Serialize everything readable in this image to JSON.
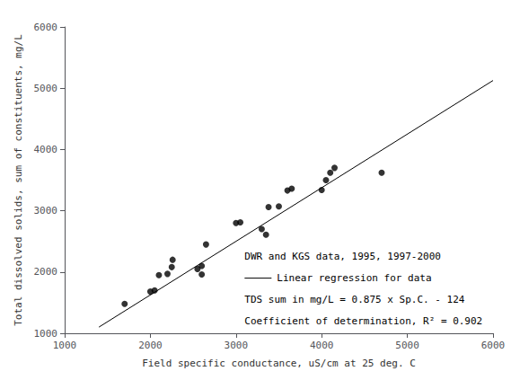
{
  "chart_data": {
    "type": "scatter",
    "xlabel": "Field specific conductance, uS/cm at 25 deg. C",
    "ylabel": "Total dissolved solids, sum of constituents, mg/L",
    "series": [
      {
        "name": "DWR and KGS data, 1995, 1997-2000",
        "type": "scatter",
        "color": "#000000",
        "marker": "circle",
        "x": [
          1700,
          2000,
          2050,
          2100,
          2200,
          2250,
          2260,
          2550,
          2600,
          2600,
          2650,
          3000,
          3050,
          3300,
          3350,
          3380,
          3500,
          3600,
          3650,
          4000,
          4050,
          4100,
          4150,
          4700
        ],
        "values": [
          1480,
          1680,
          1700,
          1950,
          1970,
          2080,
          2200,
          2050,
          1960,
          2100,
          2450,
          2800,
          2810,
          2700,
          2610,
          3060,
          3070,
          3330,
          3360,
          3340,
          3500,
          3620,
          3700,
          3620
        ]
      },
      {
        "name": "Linear regression for data",
        "type": "line",
        "color": "#000000",
        "line_style": "solid",
        "x": [
          1400,
          6000
        ],
        "values": [
          1101,
          5126
        ]
      }
    ],
    "annotations": [
      "TDS sum in mg/L = 0.875 x Sp.C. - 124",
      "Coefficient of determination, R² = 0.902"
    ],
    "xlim": [
      1000,
      6000
    ],
    "ylim": [
      1000,
      6000
    ],
    "xticks": [
      1000,
      2000,
      3000,
      4000,
      5000,
      6000
    ],
    "yticks": [
      1000,
      2000,
      3000,
      4000,
      5000,
      6000
    ],
    "grid": false
  }
}
